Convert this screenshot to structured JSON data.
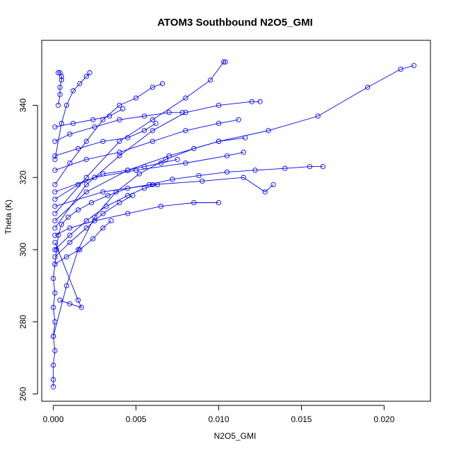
{
  "chart_data": {
    "type": "scatter",
    "title": "ATOM3 Southbound N2O5_GMI",
    "xlabel": "N2O5_GMI",
    "ylabel": "Theta (K)",
    "xlim": [
      -0.0007,
      0.0228
    ],
    "ylim": [
      258,
      358
    ],
    "xticks": [
      0.0,
      0.005,
      0.01,
      0.015,
      0.02
    ],
    "xtick_labels": [
      "0.000",
      "0.005",
      "0.010",
      "0.015",
      "0.020"
    ],
    "yticks": [
      260,
      280,
      300,
      320,
      340
    ],
    "ytick_labels": [
      "260",
      "280",
      "300",
      "320",
      "340"
    ],
    "grid": false,
    "marker": "open-circle",
    "color": "#0000ff",
    "series": [
      {
        "points": [
          [
            0.0,
            262
          ],
          [
            0.0,
            264
          ],
          [
            0.0,
            268
          ],
          [
            0.0001,
            272
          ],
          [
            0.0,
            276
          ],
          [
            0.0001,
            280
          ],
          [
            0.0,
            284
          ],
          [
            0.0001,
            288
          ],
          [
            0.0,
            292
          ],
          [
            0.0001,
            296
          ],
          [
            0.0002,
            300
          ],
          [
            0.0003,
            304
          ],
          [
            0.0005,
            307
          ],
          [
            0.0009,
            309
          ],
          [
            0.0015,
            311
          ],
          [
            0.0023,
            313
          ],
          [
            0.0033,
            315
          ],
          [
            0.0045,
            317
          ],
          [
            0.0058,
            318
          ],
          [
            0.0072,
            319.5
          ],
          [
            0.0088,
            320.5
          ],
          [
            0.0105,
            321.5
          ],
          [
            0.0122,
            322
          ],
          [
            0.014,
            322.5
          ],
          [
            0.0155,
            323
          ],
          [
            0.0163,
            323
          ]
        ]
      },
      {
        "points": [
          [
            0.0,
            276
          ],
          [
            0.0008,
            290
          ],
          [
            0.0015,
            300
          ],
          [
            0.0025,
            309
          ],
          [
            0.0038,
            316
          ],
          [
            0.0052,
            321
          ],
          [
            0.0068,
            325
          ],
          [
            0.0085,
            328
          ],
          [
            0.01,
            330
          ],
          [
            0.0116,
            331
          ]
        ]
      },
      {
        "points": [
          [
            0.0001,
            308
          ],
          [
            0.002,
            316
          ],
          [
            0.0045,
            322
          ],
          [
            0.007,
            326
          ],
          [
            0.01,
            330
          ],
          [
            0.013,
            333
          ],
          [
            0.016,
            337
          ],
          [
            0.019,
            345
          ],
          [
            0.021,
            350
          ],
          [
            0.0218,
            351
          ]
        ]
      },
      {
        "points": [
          [
            0.0001,
            310
          ],
          [
            0.002,
            320
          ],
          [
            0.004,
            330
          ],
          [
            0.006,
            336
          ],
          [
            0.008,
            342
          ],
          [
            0.0095,
            347
          ],
          [
            0.0103,
            352
          ],
          [
            0.0104,
            352
          ]
        ]
      },
      {
        "points": [
          [
            0.0001,
            304
          ],
          [
            0.001,
            306
          ],
          [
            0.0025,
            308
          ],
          [
            0.0045,
            310
          ],
          [
            0.0065,
            312
          ],
          [
            0.0085,
            313
          ],
          [
            0.01,
            313
          ]
        ]
      },
      {
        "points": [
          [
            0.0001,
            312
          ],
          [
            0.003,
            316
          ],
          [
            0.006,
            318
          ],
          [
            0.009,
            319
          ],
          [
            0.0115,
            320
          ],
          [
            0.0128,
            316
          ],
          [
            0.0133,
            318
          ]
        ]
      },
      {
        "points": [
          [
            0.0001,
            306
          ],
          [
            0.002,
            318
          ],
          [
            0.004,
            326
          ],
          [
            0.006,
            333
          ],
          [
            0.008,
            338
          ],
          [
            0.01,
            340
          ],
          [
            0.012,
            341
          ],
          [
            0.0125,
            341
          ]
        ]
      },
      {
        "points": [
          [
            0.0001,
            318
          ],
          [
            0.001,
            324
          ],
          [
            0.002,
            330
          ],
          [
            0.003,
            336
          ],
          [
            0.004,
            340
          ],
          [
            0.005,
            342
          ],
          [
            0.006,
            345
          ],
          [
            0.0066,
            346
          ]
        ]
      },
      {
        "points": [
          [
            0.0001,
            325
          ],
          [
            0.0005,
            335
          ],
          [
            0.0008,
            340
          ],
          [
            0.0012,
            344
          ],
          [
            0.0016,
            346
          ],
          [
            0.002,
            348
          ],
          [
            0.0022,
            349
          ]
        ]
      },
      {
        "points": [
          [
            0.0001,
            296
          ],
          [
            0.0008,
            298
          ],
          [
            0.0016,
            300
          ],
          [
            0.0024,
            303
          ],
          [
            0.003,
            306
          ],
          [
            0.0035,
            308
          ]
        ]
      },
      {
        "points": [
          [
            0.0001,
            316
          ],
          [
            0.0025,
            320
          ],
          [
            0.005,
            322
          ],
          [
            0.008,
            324
          ],
          [
            0.0105,
            326
          ],
          [
            0.0115,
            327
          ]
        ]
      },
      {
        "points": [
          [
            0.0001,
            322
          ],
          [
            0.002,
            325
          ],
          [
            0.004,
            327
          ],
          [
            0.006,
            330
          ],
          [
            0.008,
            333
          ],
          [
            0.01,
            335
          ],
          [
            0.0112,
            336
          ]
        ]
      },
      {
        "points": [
          [
            0.0001,
            302
          ],
          [
            0.0015,
            286
          ],
          [
            0.0017,
            284
          ],
          [
            0.001,
            285
          ],
          [
            0.0004,
            286
          ]
        ]
      },
      {
        "points": [
          [
            0.0001,
            300
          ],
          [
            0.001,
            304
          ],
          [
            0.002,
            308
          ],
          [
            0.0032,
            312
          ],
          [
            0.0045,
            315
          ],
          [
            0.0055,
            317
          ],
          [
            0.0063,
            318
          ]
        ]
      },
      {
        "points": [
          [
            0.0001,
            330
          ],
          [
            0.001,
            332
          ],
          [
            0.0025,
            334
          ],
          [
            0.004,
            336
          ],
          [
            0.0055,
            337
          ],
          [
            0.007,
            338
          ],
          [
            0.0078,
            338
          ]
        ]
      },
      {
        "points": [
          [
            0.0003,
            340
          ],
          [
            0.0004,
            343
          ],
          [
            0.0004,
            345
          ],
          [
            0.0005,
            347
          ],
          [
            0.0005,
            348
          ],
          [
            0.0004,
            349
          ],
          [
            0.0003,
            349
          ]
        ]
      },
      {
        "points": [
          [
            0.0001,
            314
          ],
          [
            0.0015,
            318
          ],
          [
            0.003,
            321
          ],
          [
            0.0045,
            322
          ],
          [
            0.0055,
            323
          ],
          [
            0.0065,
            324
          ],
          [
            0.0075,
            325
          ]
        ]
      },
      {
        "points": [
          [
            0.0001,
            298
          ],
          [
            0.001,
            302
          ],
          [
            0.002,
            306
          ],
          [
            0.003,
            310
          ],
          [
            0.004,
            313
          ],
          [
            0.0048,
            315
          ]
        ]
      },
      {
        "points": [
          [
            0.0001,
            334
          ],
          [
            0.0012,
            335
          ],
          [
            0.0024,
            336
          ],
          [
            0.0034,
            337
          ],
          [
            0.0042,
            339
          ]
        ]
      },
      {
        "points": [
          [
            0.0001,
            326
          ],
          [
            0.0015,
            328
          ],
          [
            0.003,
            330
          ],
          [
            0.0045,
            331
          ],
          [
            0.0055,
            333
          ],
          [
            0.0062,
            335
          ]
        ]
      }
    ]
  }
}
